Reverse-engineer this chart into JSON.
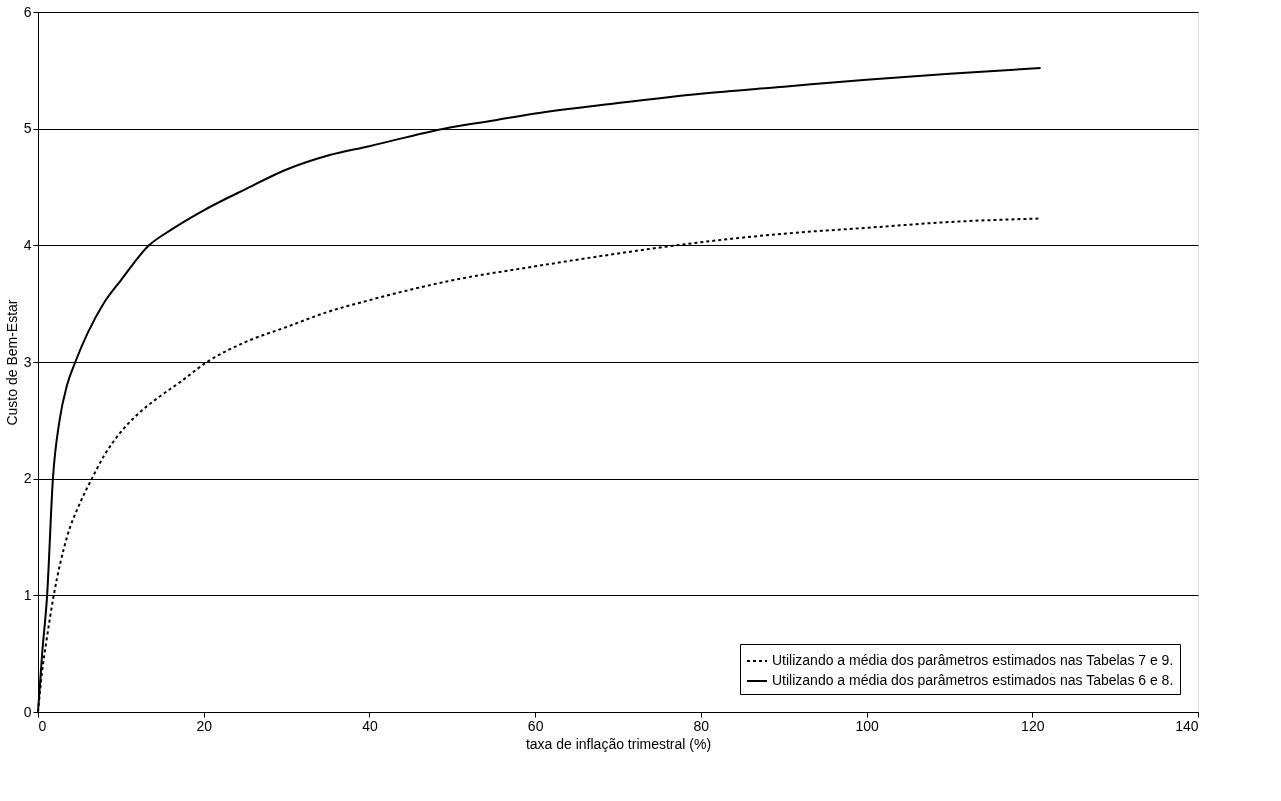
{
  "chart_data": {
    "type": "line",
    "xlabel": "taxa de inflação trimestral (%)",
    "ylabel": "Custo de Bem-Estar",
    "xlim": [
      0,
      140
    ],
    "xticks": [
      0,
      20,
      40,
      60,
      80,
      100,
      120,
      140
    ],
    "ylim": [
      0,
      6
    ],
    "yticks": [
      0,
      1,
      2,
      3,
      4,
      5,
      6
    ],
    "grid": "y",
    "legend": "bottom right",
    "marker": "none",
    "series": [
      {
        "name": "Utilizando a média dos parâmetros estimados nas Tabelas 7 e 9.",
        "color": "#000000",
        "line_style": "dotted",
        "x": [
          0,
          0.5,
          1,
          1.9,
          3.5,
          5,
          6.5,
          8,
          10,
          12,
          14.6,
          17,
          20.4,
          25,
          30,
          35,
          40,
          50,
          60,
          70,
          77,
          90,
          100,
          110,
          121
        ],
        "values": [
          0,
          0.35,
          0.6,
          1.0,
          1.5,
          1.78,
          2.0,
          2.2,
          2.4,
          2.55,
          2.7,
          2.82,
          3.0,
          3.17,
          3.3,
          3.43,
          3.53,
          3.7,
          3.82,
          3.93,
          4.0,
          4.1,
          4.15,
          4.2,
          4.23
        ]
      },
      {
        "name": "Utilizando a média dos parâmetros estimados nas Tabelas 6 e 8.",
        "color": "#000000",
        "line_style": "solid",
        "x": [
          0,
          0.5,
          1.1,
          1.8,
          2.6,
          3.5,
          4.5,
          6,
          7.9,
          10,
          13.4,
          16,
          20,
          25,
          30,
          35,
          40,
          49,
          55,
          60,
          70,
          80,
          90,
          100,
          110,
          121
        ],
        "values": [
          0,
          0.5,
          1.0,
          2.0,
          2.5,
          2.8,
          3.0,
          3.25,
          3.5,
          3.7,
          4.0,
          4.13,
          4.3,
          4.48,
          4.65,
          4.77,
          4.85,
          5.0,
          5.07,
          5.13,
          5.22,
          5.3,
          5.36,
          5.42,
          5.47,
          5.52
        ]
      }
    ]
  }
}
